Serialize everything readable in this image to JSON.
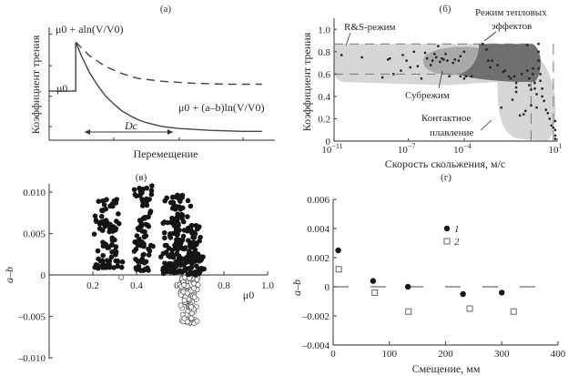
{
  "chart_data": [
    {
      "panel": "a",
      "type": "line",
      "title": "(а)",
      "xlabel": "Перемещение",
      "ylabel": "Коэффициент трения",
      "annotations": {
        "peak": "μ0 + aln(V/V0)",
        "base": "μ0",
        "steady": "μ0 + (a–b)ln(V/V0)",
        "distance": "Dc"
      },
      "series": [
        {
          "name": "solid",
          "style": "solid",
          "x": [
            0,
            0.33,
            0.33,
            0.4,
            0.5,
            0.6,
            0.7,
            0.8,
            0.9,
            1.0,
            1.1,
            1.2,
            1.4,
            1.6,
            2.0,
            2.4,
            2.64
          ],
          "y": [
            0.5,
            0.5,
            1.0,
            0.86,
            0.69,
            0.56,
            0.45,
            0.37,
            0.3,
            0.25,
            0.21,
            0.18,
            0.14,
            0.12,
            0.1,
            0.09,
            0.09
          ]
        },
        {
          "name": "dashed",
          "style": "dashed",
          "x": [
            0.33,
            0.5,
            0.7,
            0.9,
            1.1,
            1.4,
            1.8,
            2.2,
            2.64
          ],
          "y": [
            1.0,
            0.86,
            0.75,
            0.68,
            0.63,
            0.6,
            0.58,
            0.57,
            0.57
          ]
        }
      ],
      "xlim": [
        0,
        2.8
      ],
      "ylim": [
        0,
        1.15
      ]
    },
    {
      "panel": "б",
      "type": "scatter",
      "title": "(б)",
      "xlabel": "Скорость скольжения, м/с",
      "ylabel": "Коэффициент трения",
      "xscale": "log",
      "xticks": [
        "10^-11",
        "10^-7",
        "10^-4",
        "10^1"
      ],
      "xtick_exponents": [
        -11,
        -7,
        -4,
        1
      ],
      "yticks": [
        "0",
        "0.2",
        "0.4",
        "0.6",
        "0.8",
        "1.0"
      ],
      "ytick_values": [
        0,
        0.2,
        0.4,
        0.6,
        0.8,
        1.0
      ],
      "xlim_exp": [
        -11,
        1
      ],
      "ylim": [
        0,
        1.1
      ],
      "regions": [
        {
          "name": "R&S-режим",
          "shade": "light"
        },
        {
          "name": "Субрежим",
          "shade": "medium"
        },
        {
          "name": "Режим тепловых эффектов",
          "shade": "dark"
        },
        {
          "name": "Контактное плавление",
          "shade": "light"
        }
      ],
      "labels": {
        "rs": "R&S-режим",
        "sub": "Субрежим",
        "thermal1": "Режим тепловых",
        "thermal2": "эффектов",
        "melt1": "Контактное",
        "melt2": "плавление"
      },
      "points_log10x_y": [
        [
          -10.6,
          0.77
        ],
        [
          -9.5,
          0.75
        ],
        [
          -8.4,
          0.57
        ],
        [
          -8.1,
          0.73
        ],
        [
          -8.0,
          0.74
        ],
        [
          -7.8,
          0.6
        ],
        [
          -7.4,
          0.63
        ],
        [
          -7.3,
          0.77
        ],
        [
          -7.1,
          0.72
        ],
        [
          -6.9,
          0.66
        ],
        [
          -6.7,
          0.8
        ],
        [
          -6.5,
          0.67
        ],
        [
          -6.3,
          0.56
        ],
        [
          -6.1,
          0.79
        ],
        [
          -6.0,
          0.74
        ],
        [
          -5.8,
          0.68
        ],
        [
          -5.7,
          0.72
        ],
        [
          -5.6,
          0.78
        ],
        [
          -5.5,
          0.75
        ],
        [
          -5.4,
          0.85
        ],
        [
          -5.3,
          0.71
        ],
        [
          -5.2,
          0.74
        ],
        [
          -5.1,
          0.73
        ],
        [
          -5.0,
          0.78
        ],
        [
          -4.9,
          0.72
        ],
        [
          -4.8,
          0.58
        ],
        [
          -4.6,
          0.7
        ],
        [
          -4.5,
          0.73
        ],
        [
          -4.3,
          0.72
        ],
        [
          -4.2,
          0.76
        ],
        [
          -3.0,
          0.87
        ],
        [
          -2.8,
          0.82
        ],
        [
          -2.7,
          0.72
        ],
        [
          -2.6,
          0.66
        ],
        [
          -2.5,
          0.72
        ],
        [
          -2.2,
          0.68
        ],
        [
          -1.9,
          0.62
        ],
        [
          -1.8,
          0.63
        ],
        [
          -1.6,
          0.58
        ],
        [
          -1.5,
          0.56
        ],
        [
          -1.3,
          0.58
        ],
        [
          -1.2,
          0.52
        ],
        [
          -1.2,
          0.48
        ],
        [
          -1.2,
          0.44
        ],
        [
          -0.9,
          0.6
        ],
        [
          -0.6,
          0.86
        ],
        [
          -0.6,
          0.63
        ],
        [
          -0.5,
          0.56
        ],
        [
          -0.5,
          0.5
        ],
        [
          -0.4,
          0.46
        ],
        [
          -0.3,
          0.65
        ],
        [
          -0.3,
          0.6
        ],
        [
          -0.2,
          0.47
        ],
        [
          -0.1,
          0.42
        ],
        [
          -0.1,
          0.3
        ],
        [
          0.0,
          0.87
        ],
        [
          0.0,
          0.8
        ],
        [
          0.0,
          0.72
        ],
        [
          0.0,
          0.65
        ],
        [
          0.1,
          0.6
        ],
        [
          0.1,
          0.54
        ],
        [
          0.2,
          0.4
        ],
        [
          0.3,
          0.36
        ],
        [
          0.4,
          0.28
        ],
        [
          0.5,
          0.25
        ],
        [
          0.6,
          0.2
        ],
        [
          0.7,
          0.14
        ],
        [
          0.8,
          0.12
        ],
        [
          0.9,
          0.18
        ],
        [
          0.9,
          0.1
        ],
        [
          0.9,
          0.05
        ],
        [
          0.9,
          0.02
        ],
        [
          -4.0,
          0.56
        ],
        [
          -4.0,
          0.8
        ],
        [
          -4.2,
          0.58
        ],
        [
          -3.6,
          0.58
        ],
        [
          -3.9,
          0.58
        ],
        [
          -2.0,
          0.3
        ],
        [
          -1.4,
          0.37
        ],
        [
          -1.0,
          0.23
        ],
        [
          -0.8,
          0.24
        ],
        [
          -0.7,
          0.27
        ],
        [
          -0.4,
          0.32
        ],
        [
          -0.2,
          0.52
        ],
        [
          0.2,
          0.47
        ]
      ],
      "dashed_guides": {
        "y_upper": 0.87,
        "y_lower": 0.6,
        "x_exp_vertical": [
          -0.4,
          0.8
        ]
      }
    },
    {
      "panel": "в",
      "type": "scatter",
      "title": "(в)",
      "xlabel": "μ0",
      "ylabel": "a–b",
      "xticks": [
        "0.2",
        "0.4",
        "0.6",
        "0.8",
        "1.0"
      ],
      "xtick_values": [
        0.2,
        0.4,
        0.6,
        0.8,
        1.0
      ],
      "yticks": [
        "0.010",
        "0.005",
        "0",
        "–0.005",
        "–0.010"
      ],
      "ytick_values": [
        0.01,
        0.005,
        0,
        -0.005,
        -0.01
      ],
      "xlim": [
        0,
        1.0
      ],
      "ylim": [
        -0.01,
        0.011
      ],
      "series": [
        {
          "name": "positive (a–b > 0)",
          "marker": "filled-circle",
          "clusters": [
            {
              "x_center": 0.27,
              "x_spread": 0.07,
              "y_min": 0.0008,
              "y_max": 0.0095,
              "count": 90
            },
            {
              "x_center": 0.43,
              "x_spread": 0.05,
              "y_min": 0.0005,
              "y_max": 0.0108,
              "count": 80
            },
            {
              "x_center": 0.58,
              "x_spread": 0.07,
              "y_min": 0.0002,
              "y_max": 0.0098,
              "count": 140
            },
            {
              "x_center": 0.66,
              "x_spread": 0.06,
              "y_min": 0.0,
              "y_max": 0.006,
              "count": 80
            }
          ]
        },
        {
          "name": "negative (a–b < 0)",
          "marker": "open-circle",
          "clusters": [
            {
              "x_center": 0.64,
              "x_spread": 0.05,
              "y_min": -0.006,
              "y_max": -0.0002,
              "count": 110
            }
          ],
          "outliers": [
            [
              0.33,
              -0.0003
            ]
          ]
        }
      ]
    },
    {
      "panel": "г",
      "type": "scatter",
      "title": "(г)",
      "xlabel": "Смещение, мм",
      "ylabel": "a–b",
      "xticks": [
        "0",
        "100",
        "200",
        "300",
        "400"
      ],
      "xtick_values": [
        0,
        100,
        200,
        300,
        400
      ],
      "yticks": [
        "0.006",
        "0.004",
        "0.002",
        "0",
        "–0.002",
        "–0.004"
      ],
      "ytick_values": [
        0.006,
        0.004,
        0.002,
        0,
        -0.002,
        -0.004
      ],
      "xlim": [
        0,
        400
      ],
      "ylim": [
        -0.004,
        0.006
      ],
      "legend": {
        "position": "top-center",
        "entries": [
          "1",
          "2"
        ]
      },
      "series": [
        {
          "name": "1",
          "marker": "filled-circle",
          "x": [
            9,
            71,
            133,
            231,
            300
          ],
          "y": [
            0.0025,
            0.0004,
            0.0,
            -0.0005,
            -0.0004
          ]
        },
        {
          "name": "2",
          "marker": "open-square",
          "x": [
            10,
            74,
            134,
            243,
            321
          ],
          "y": [
            0.0012,
            -0.0004,
            -0.0017,
            -0.0015,
            -0.0017
          ]
        }
      ],
      "zero_line": "dashed"
    }
  ]
}
